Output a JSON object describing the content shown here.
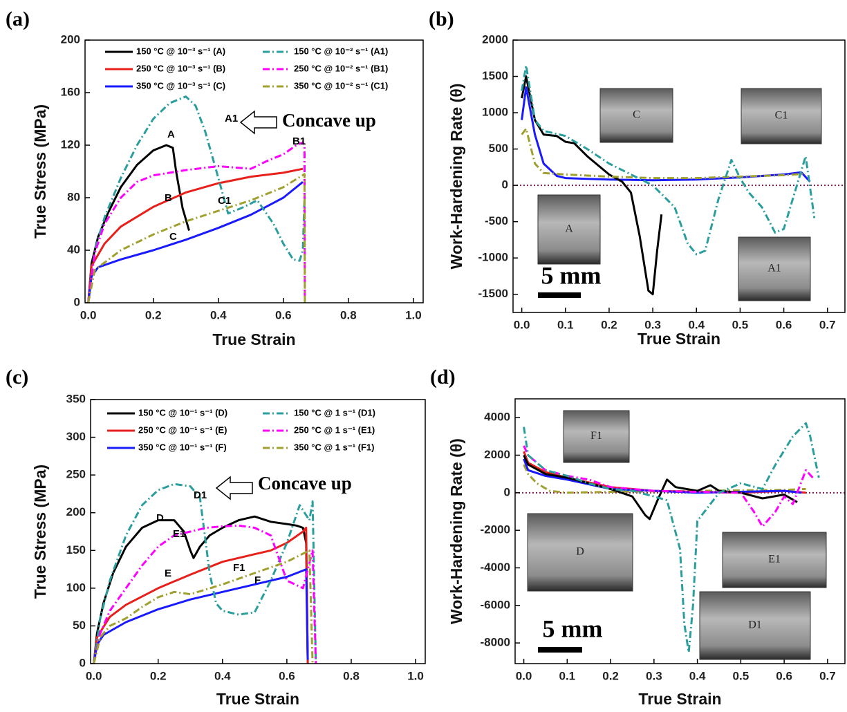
{
  "chart_data": [
    {
      "type": "line",
      "panel_label": "(a)",
      "xlabel": "True Strain",
      "ylabel": "True Stress (MPa)",
      "xlim": [
        -0.01,
        1.03
      ],
      "ylim": [
        0,
        200
      ],
      "xticks": [
        {
          "value": 0,
          "label": "0.0"
        },
        0.2,
        0.4,
        0.6,
        0.8,
        {
          "value": 1,
          "label": "1.0"
        }
      ],
      "yticks": [
        0,
        40,
        80,
        120,
        160,
        200
      ],
      "series": [
        {
          "name": "150 °C @ 10⁻³ s⁻¹ (A)",
          "color": "#000000",
          "style": "solid",
          "x": [
            0,
            0.01,
            0.03,
            0.06,
            0.1,
            0.15,
            0.2,
            0.24,
            0.26,
            0.27,
            0.29,
            0.31
          ],
          "values": [
            0,
            30,
            50,
            68,
            88,
            105,
            116,
            120,
            118,
            100,
            72,
            55
          ]
        },
        {
          "name": "250 °C @ 10⁻³ s⁻¹ (B)",
          "color": "#e8201c",
          "style": "solid",
          "x": [
            0,
            0.01,
            0.05,
            0.1,
            0.2,
            0.3,
            0.4,
            0.5,
            0.6,
            0.66
          ],
          "values": [
            0,
            28,
            45,
            58,
            73,
            84,
            91,
            96,
            99,
            102
          ]
        },
        {
          "name": "350 °C @ 10⁻³ s⁻¹ (C)",
          "color": "#1a1aff",
          "style": "solid",
          "x": [
            0,
            0.01,
            0.03,
            0.1,
            0.2,
            0.3,
            0.4,
            0.5,
            0.6,
            0.66
          ],
          "values": [
            0,
            20,
            27,
            33,
            40,
            48,
            57,
            67,
            80,
            92
          ]
        },
        {
          "name": "150 °C @ 10⁻² s⁻¹ (A1)",
          "color": "#2a9d9d",
          "style": "dash-dot",
          "x": [
            0,
            0.02,
            0.05,
            0.1,
            0.15,
            0.2,
            0.25,
            0.3,
            0.33,
            0.36,
            0.4,
            0.43,
            0.47,
            0.52,
            0.57,
            0.6,
            0.63,
            0.65,
            0.66,
            0.665
          ],
          "values": [
            0,
            40,
            65,
            95,
            120,
            140,
            152,
            157,
            150,
            130,
            95,
            68,
            72,
            78,
            60,
            45,
            33,
            32,
            40,
            80
          ]
        },
        {
          "name": "250 °C @ 10⁻² s⁻¹ (B1)",
          "color": "#ff00ff",
          "style": "dash-dot",
          "x": [
            0,
            0.02,
            0.05,
            0.1,
            0.15,
            0.2,
            0.25,
            0.3,
            0.4,
            0.5,
            0.55,
            0.6,
            0.64,
            0.66,
            0.665,
            0.666
          ],
          "values": [
            0,
            38,
            60,
            80,
            92,
            97,
            99,
            101,
            104,
            102,
            108,
            113,
            120,
            122,
            120,
            0
          ]
        },
        {
          "name": "350 °C @ 10⁻² s⁻¹ (C1)",
          "color": "#a0a030",
          "style": "dash-dot",
          "x": [
            0,
            0.02,
            0.1,
            0.2,
            0.3,
            0.4,
            0.5,
            0.6,
            0.665,
            0.666
          ],
          "values": [
            0,
            25,
            40,
            52,
            62,
            70,
            78,
            88,
            98,
            0
          ]
        }
      ],
      "annotations": [
        "A",
        "B",
        "C",
        "A1",
        "B1",
        "C1",
        "Concave up"
      ]
    },
    {
      "type": "line",
      "panel_label": "(b)",
      "xlabel": "True Strain",
      "ylabel": "Work-Hardening Rate (θ)",
      "xlim": [
        -0.02,
        0.74
      ],
      "ylim": [
        -1750,
        2000
      ],
      "xticks": [
        {
          "value": 0,
          "label": "0.0"
        },
        0.1,
        0.2,
        0.3,
        0.4,
        0.5,
        0.6,
        0.7
      ],
      "yticks": [
        -1500,
        -1000,
        -500,
        0,
        500,
        1000,
        1500,
        2000
      ],
      "reference_line": 0,
      "reference_color": "#8b1a4a",
      "series": [
        {
          "color": "#1a1aff",
          "style": "solid",
          "x": [
            0,
            0.01,
            0.03,
            0.05,
            0.08,
            0.1,
            0.15,
            0.2,
            0.3,
            0.4,
            0.5,
            0.6,
            0.64,
            0.66
          ],
          "values": [
            900,
            1350,
            700,
            300,
            130,
            100,
            90,
            80,
            70,
            80,
            110,
            150,
            180,
            50
          ]
        },
        {
          "color": "#000000",
          "style": "solid",
          "x": [
            0,
            0.01,
            0.03,
            0.05,
            0.08,
            0.1,
            0.12,
            0.15,
            0.18,
            0.2,
            0.23,
            0.25,
            0.27,
            0.29,
            0.3,
            0.31,
            0.32
          ],
          "values": [
            1200,
            1500,
            900,
            700,
            680,
            600,
            580,
            400,
            250,
            150,
            50,
            -100,
            -700,
            -1450,
            -1500,
            -900,
            -400
          ]
        },
        {
          "color": "#a0a030",
          "style": "dash-dot",
          "x": [
            0,
            0.01,
            0.03,
            0.05,
            0.1,
            0.2,
            0.3,
            0.4,
            0.5,
            0.6,
            0.65
          ],
          "values": [
            700,
            780,
            300,
            170,
            150,
            120,
            100,
            100,
            120,
            140,
            160
          ]
        },
        {
          "color": "#2a9d9d",
          "style": "dash-dot",
          "x": [
            0,
            0.01,
            0.03,
            0.05,
            0.1,
            0.15,
            0.2,
            0.25,
            0.3,
            0.35,
            0.38,
            0.4,
            0.42,
            0.45,
            0.48,
            0.5,
            0.52,
            0.55,
            0.58,
            0.6,
            0.62,
            0.65,
            0.67
          ],
          "values": [
            1300,
            1650,
            900,
            750,
            680,
            500,
            300,
            150,
            0,
            -300,
            -800,
            -950,
            -900,
            -200,
            350,
            100,
            -100,
            -300,
            -650,
            -600,
            -200,
            400,
            -450
          ]
        }
      ],
      "insets": [
        "C",
        "C1",
        "A",
        "A1"
      ],
      "scale_bar": "5 mm"
    },
    {
      "type": "line",
      "panel_label": "(c)",
      "xlabel": "True Strain",
      "ylabel": "True Stress (MPa)",
      "xlim": [
        -0.01,
        1.03
      ],
      "ylim": [
        0,
        350
      ],
      "xticks": [
        {
          "value": 0,
          "label": "0.0"
        },
        0.2,
        0.4,
        0.6,
        0.8,
        {
          "value": 1,
          "label": "1.0"
        }
      ],
      "yticks": [
        0,
        50,
        100,
        150,
        200,
        250,
        300,
        350
      ],
      "series": [
        {
          "name": "150 °C @ 10⁻¹ s⁻¹ (D)",
          "color": "#000000",
          "style": "solid",
          "x": [
            0,
            0.01,
            0.03,
            0.06,
            0.1,
            0.15,
            0.2,
            0.25,
            0.28,
            0.3,
            0.31,
            0.33,
            0.36,
            0.4,
            0.45,
            0.5,
            0.55,
            0.6,
            0.63,
            0.65,
            0.66,
            0.665
          ],
          "values": [
            0,
            40,
            80,
            120,
            155,
            180,
            190,
            190,
            175,
            150,
            140,
            155,
            170,
            180,
            190,
            195,
            188,
            185,
            183,
            180,
            160,
            0
          ]
        },
        {
          "name": "250 °C @ 10⁻¹ s⁻¹ (E)",
          "color": "#e8201c",
          "style": "solid",
          "x": [
            0,
            0.01,
            0.05,
            0.1,
            0.2,
            0.3,
            0.4,
            0.5,
            0.55,
            0.6,
            0.65,
            0.66,
            0.665
          ],
          "values": [
            0,
            35,
            62,
            78,
            100,
            118,
            135,
            145,
            150,
            160,
            175,
            180,
            0
          ]
        },
        {
          "name": "350 °C @ 10⁻¹ s⁻¹ (F)",
          "color": "#1a1aff",
          "style": "solid",
          "x": [
            0,
            0.01,
            0.03,
            0.1,
            0.2,
            0.3,
            0.4,
            0.5,
            0.6,
            0.66,
            0.665
          ],
          "values": [
            0,
            25,
            38,
            55,
            72,
            85,
            95,
            105,
            115,
            125,
            5
          ]
        },
        {
          "name": "150 °C @ 1 s⁻¹ (D1)",
          "color": "#2a9d9d",
          "style": "dash-dot",
          "x": [
            0,
            0.02,
            0.05,
            0.1,
            0.15,
            0.2,
            0.25,
            0.3,
            0.33,
            0.36,
            0.38,
            0.4,
            0.45,
            0.5,
            0.55,
            0.6,
            0.64,
            0.67,
            0.68,
            0.69
          ],
          "values": [
            0,
            60,
            110,
            170,
            210,
            230,
            238,
            235,
            220,
            120,
            80,
            70,
            65,
            68,
            110,
            160,
            210,
            190,
            215,
            0
          ]
        },
        {
          "name": "250 °C @ 1 s⁻¹ (E1)",
          "color": "#ff00ff",
          "style": "dash-dot",
          "x": [
            0,
            0.02,
            0.05,
            0.1,
            0.15,
            0.2,
            0.25,
            0.3,
            0.35,
            0.4,
            0.45,
            0.5,
            0.55,
            0.6,
            0.65,
            0.68,
            0.69
          ],
          "values": [
            0,
            40,
            70,
            100,
            130,
            155,
            170,
            175,
            180,
            182,
            183,
            180,
            170,
            110,
            100,
            150,
            0
          ]
        },
        {
          "name": "350 °C @ 1 s⁻¹ (F1)",
          "color": "#a0a030",
          "style": "dash-dot",
          "x": [
            0,
            0.02,
            0.05,
            0.1,
            0.15,
            0.2,
            0.25,
            0.3,
            0.4,
            0.5,
            0.6,
            0.67,
            0.68
          ],
          "values": [
            0,
            35,
            50,
            60,
            75,
            88,
            95,
            92,
            105,
            120,
            135,
            150,
            0
          ]
        }
      ],
      "annotations": [
        "D",
        "E1",
        "E",
        "F1",
        "F",
        "D1",
        "Concave up"
      ]
    },
    {
      "type": "line",
      "panel_label": "(d)",
      "xlabel": "True Strain",
      "ylabel": "Work-Hardening Rate (θ)",
      "xlim": [
        -0.02,
        0.74
      ],
      "ylim": [
        -9100,
        5000
      ],
      "xticks": [
        {
          "value": 0,
          "label": "0.0"
        },
        0.1,
        0.2,
        0.3,
        0.4,
        0.5,
        0.6,
        0.7
      ],
      "yticks": [
        -8000,
        -6000,
        -4000,
        -2000,
        0,
        2000,
        4000
      ],
      "reference_line": 0,
      "reference_color": "#8b1a4a",
      "series": [
        {
          "color": "#a0a030",
          "style": "dash-dot",
          "x": [
            0,
            0.01,
            0.03,
            0.06,
            0.1,
            0.2,
            0.4,
            0.6,
            0.65
          ],
          "values": [
            1500,
            1000,
            500,
            100,
            0,
            50,
            100,
            150,
            200
          ]
        },
        {
          "color": "#e8201c",
          "style": "solid",
          "x": [
            0,
            0.01,
            0.05,
            0.1,
            0.2,
            0.3,
            0.4,
            0.5,
            0.6,
            0.65
          ],
          "values": [
            2200,
            1600,
            1100,
            800,
            300,
            100,
            50,
            0,
            100,
            0
          ]
        },
        {
          "color": "#1a1aff",
          "style": "solid",
          "x": [
            0,
            0.01,
            0.05,
            0.1,
            0.2,
            0.4,
            0.6,
            0.64
          ],
          "values": [
            1800,
            1200,
            900,
            700,
            200,
            0,
            100,
            0
          ]
        },
        {
          "color": "#000000",
          "style": "solid",
          "x": [
            0,
            0.01,
            0.05,
            0.1,
            0.15,
            0.2,
            0.25,
            0.28,
            0.29,
            0.31,
            0.33,
            0.35,
            0.4,
            0.43,
            0.45,
            0.5,
            0.55,
            0.6,
            0.63
          ],
          "values": [
            2000,
            1500,
            1000,
            800,
            500,
            200,
            -200,
            -1200,
            -1400,
            -300,
            700,
            300,
            100,
            400,
            100,
            0,
            -300,
            -100,
            -500
          ]
        },
        {
          "color": "#ff00ff",
          "style": "dash-dot",
          "x": [
            0,
            0.01,
            0.05,
            0.1,
            0.15,
            0.2,
            0.3,
            0.4,
            0.5,
            0.53,
            0.55,
            0.58,
            0.6,
            0.62,
            0.65,
            0.67
          ],
          "values": [
            2500,
            2000,
            1200,
            900,
            700,
            300,
            100,
            50,
            0,
            -1000,
            -1800,
            -1000,
            -200,
            -600,
            1200,
            700
          ]
        },
        {
          "color": "#2a9d9d",
          "style": "dash-dot",
          "x": [
            0,
            0.01,
            0.05,
            0.1,
            0.15,
            0.2,
            0.25,
            0.3,
            0.33,
            0.36,
            0.37,
            0.38,
            0.39,
            0.4,
            0.45,
            0.5,
            0.55,
            0.58,
            0.62,
            0.65,
            0.66,
            0.68
          ],
          "values": [
            3500,
            2000,
            1200,
            900,
            500,
            200,
            100,
            -200,
            -400,
            -3000,
            -7000,
            -8500,
            -6000,
            -1500,
            0,
            500,
            200,
            1500,
            3000,
            3700,
            3000,
            800
          ]
        }
      ],
      "insets": [
        "F1",
        "D",
        "E1",
        "D1"
      ],
      "scale_bar": "5 mm"
    }
  ]
}
